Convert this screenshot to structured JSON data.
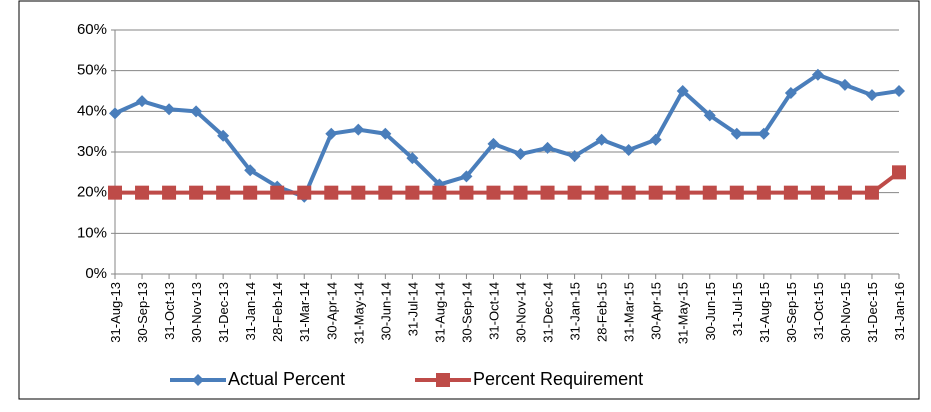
{
  "chart_data": {
    "type": "line",
    "categories": [
      "31-Aug-13",
      "30-Sep-13",
      "31-Oct-13",
      "30-Nov-13",
      "31-Dec-13",
      "31-Jan-14",
      "28-Feb-14",
      "31-Mar-14",
      "30-Apr-14",
      "31-May-14",
      "30-Jun-14",
      "31-Jul-14",
      "31-Aug-14",
      "30-Sep-14",
      "31-Oct-14",
      "30-Nov-14",
      "31-Dec-14",
      "31-Jan-15",
      "28-Feb-15",
      "31-Mar-15",
      "30-Apr-15",
      "31-May-15",
      "30-Jun-15",
      "31-Jul-15",
      "31-Aug-15",
      "30-Sep-15",
      "31-Oct-15",
      "30-Nov-15",
      "31-Dec-15",
      "31-Jan-16"
    ],
    "series": [
      {
        "name": "Actual Percent",
        "color": "#4a7ebb",
        "marker": "diamond",
        "values": [
          39.5,
          42.5,
          40.5,
          40,
          34,
          25.5,
          21.5,
          19,
          34.5,
          35.5,
          34.5,
          28.5,
          22,
          24,
          32,
          29.5,
          31,
          29,
          33,
          30.5,
          33,
          45,
          39,
          34.5,
          34.5,
          44.5,
          49,
          46.5,
          44,
          45
        ]
      },
      {
        "name": "Percent Requirement",
        "color": "#be4b48",
        "marker": "square",
        "values": [
          20,
          20,
          20,
          20,
          20,
          20,
          20,
          20,
          20,
          20,
          20,
          20,
          20,
          20,
          20,
          20,
          20,
          20,
          20,
          20,
          20,
          20,
          20,
          20,
          20,
          20,
          20,
          20,
          20,
          25
        ]
      }
    ],
    "ylim": [
      0,
      60
    ],
    "yticks": [
      {
        "value": 0,
        "label": "0%"
      },
      {
        "value": 10,
        "label": "10%"
      },
      {
        "value": 20,
        "label": "20%"
      },
      {
        "value": 30,
        "label": "30%"
      },
      {
        "value": 40,
        "label": "40%"
      },
      {
        "value": 50,
        "label": "50%"
      },
      {
        "value": 60,
        "label": "60%"
      }
    ],
    "grid": true,
    "legend": "bottom"
  }
}
